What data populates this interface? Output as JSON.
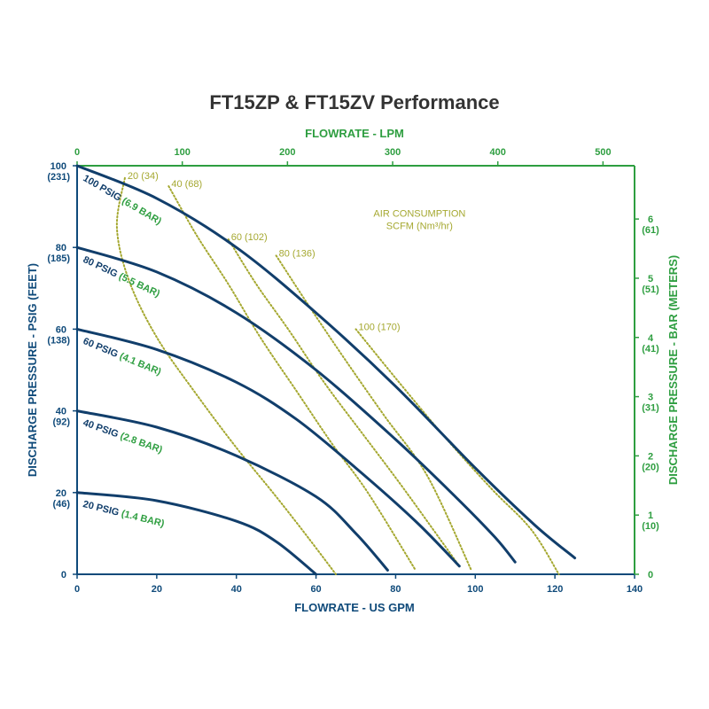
{
  "colors": {
    "curve": "#113e6b",
    "primary_axis": "#0f4a7a",
    "secondary_axis": "#2e9e40",
    "air": "#a5a830",
    "title": "#333333"
  },
  "chart_data": {
    "type": "line",
    "title": "FT15ZP & FT15ZV Performance",
    "xlabel": "FLOWRATE - US GPM",
    "ylabel": "DISCHARGE PRESSURE - PSIG (FEET)",
    "x2label": "FLOWRATE - LPM",
    "y2label": "DISCHARGE PRESSURE - BAR (METERS)",
    "xlim": [
      0,
      140
    ],
    "ylim": [
      0,
      100
    ],
    "x2lim": [
      0,
      530
    ],
    "y2lim": [
      0,
      6.9
    ],
    "x_ticks": [
      "0",
      "20",
      "40",
      "60",
      "80",
      "100",
      "120",
      "140"
    ],
    "x2_ticks": [
      "0",
      "100",
      "200",
      "300",
      "400",
      "500"
    ],
    "y_ticks": [
      {
        "value": "0",
        "sub": ""
      },
      {
        "value": "20",
        "sub": "(46)"
      },
      {
        "value": "40",
        "sub": "(92)"
      },
      {
        "value": "60",
        "sub": "(138)"
      },
      {
        "value": "80",
        "sub": "(185)"
      },
      {
        "value": "100",
        "sub": "(231)"
      }
    ],
    "y2_ticks": [
      {
        "value": "0",
        "sub": ""
      },
      {
        "value": "1",
        "sub": "(10)"
      },
      {
        "value": "2",
        "sub": "(20)"
      },
      {
        "value": "3",
        "sub": "(31)"
      },
      {
        "value": "4",
        "sub": "(41)"
      },
      {
        "value": "5",
        "sub": "(51)"
      },
      {
        "value": "6",
        "sub": "(61)"
      }
    ],
    "air_consumption_label": [
      "AIR CONSUMPTION",
      "SCFM (Nm³/hr)"
    ],
    "series": [
      {
        "name": "100 PSIG",
        "name2": "(6.9 BAR)",
        "x": [
          0,
          20,
          40,
          60,
          80,
          100,
          115,
          125
        ],
        "y": [
          100,
          92,
          80,
          64,
          46,
          26,
          12,
          4
        ]
      },
      {
        "name": "80 PSIG",
        "name2": "(5.5 BAR)",
        "x": [
          0,
          20,
          40,
          60,
          80,
          95,
          105,
          110
        ],
        "y": [
          80,
          74,
          64,
          50,
          33,
          19,
          9,
          3
        ]
      },
      {
        "name": "60 PSIG",
        "name2": "(4.1 BAR)",
        "x": [
          0,
          20,
          40,
          55,
          70,
          85,
          96
        ],
        "y": [
          60,
          55,
          47,
          38,
          26,
          13,
          2
        ]
      },
      {
        "name": "40 PSIG",
        "name2": "(2.8 BAR)",
        "x": [
          0,
          20,
          40,
          60,
          70,
          78
        ],
        "y": [
          40,
          36,
          29,
          19,
          10,
          1
        ]
      },
      {
        "name": "20 PSIG",
        "name2": "(1.4 BAR)",
        "x": [
          0,
          20,
          40,
          50,
          60
        ],
        "y": [
          20,
          18,
          13,
          8,
          0
        ]
      }
    ],
    "air_series": [
      {
        "label": "20 (34)",
        "x": [
          12,
          10,
          13,
          20,
          30,
          40,
          50,
          58,
          65
        ],
        "y": [
          97,
          85,
          72,
          58,
          44,
          31,
          19,
          9,
          0
        ]
      },
      {
        "label": "40 (68)",
        "x": [
          23,
          30,
          38,
          46,
          55,
          64,
          73,
          85
        ],
        "y": [
          95,
          83,
          71,
          58,
          45,
          32,
          20,
          1
        ]
      },
      {
        "label": "60 (102)",
        "x": [
          38,
          45,
          53,
          62,
          72,
          82,
          96
        ],
        "y": [
          82,
          71,
          60,
          47,
          34,
          21,
          2
        ]
      },
      {
        "label": "80 (136)",
        "x": [
          50,
          58,
          67,
          77,
          88,
          99
        ],
        "y": [
          78,
          66,
          53,
          39,
          24,
          1
        ]
      },
      {
        "label": "100 (170)",
        "x": [
          70,
          80,
          92,
          104,
          114,
          121
        ],
        "y": [
          60,
          48,
          34,
          21,
          11,
          0
        ]
      }
    ],
    "grid": false
  }
}
